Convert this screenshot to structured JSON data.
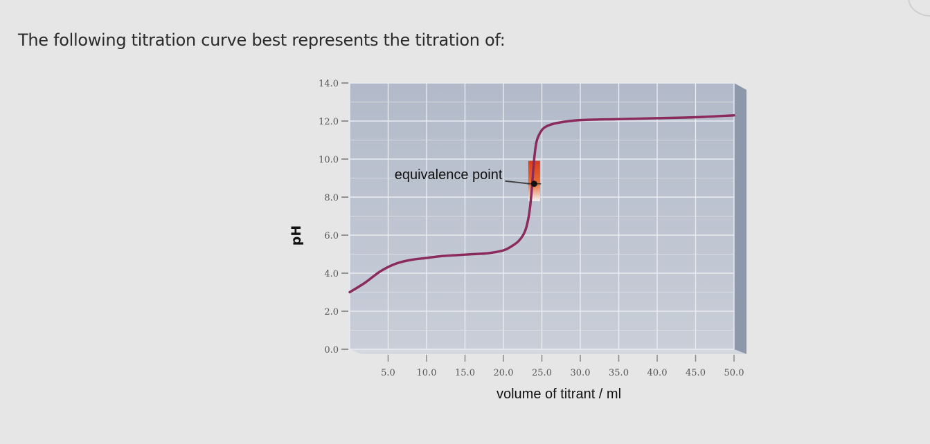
{
  "question": "The following titration curve best represents the titration of:",
  "chart_data": {
    "type": "line",
    "title": "",
    "xlabel": "volume of titrant / ml",
    "ylabel": "pH",
    "xlim": [
      0,
      50
    ],
    "ylim": [
      0,
      14
    ],
    "x_ticks": [
      5,
      10,
      15,
      20,
      25,
      30,
      35,
      40,
      45,
      50
    ],
    "x_tick_labels": [
      "5.0",
      "10.0",
      "15.0",
      "20.0",
      "25.0",
      "30.0",
      "35.0",
      "40.0",
      "45.0",
      "50.0"
    ],
    "y_ticks": [
      0,
      2,
      4,
      6,
      8,
      10,
      12,
      14
    ],
    "y_tick_labels": [
      "0.0",
      "2.0",
      "4.0",
      "6.0",
      "8.0",
      "10.0",
      "12.0",
      "14.0"
    ],
    "grid": true,
    "series": [
      {
        "color": "#8b2a5c",
        "x": [
          0,
          2,
          4,
          6,
          8,
          10,
          12,
          14,
          16,
          18,
          20,
          21,
          22,
          22.8,
          23.3,
          23.6,
          23.8,
          24.0,
          24.3,
          24.8,
          25.5,
          27,
          30,
          35,
          40,
          45,
          50
        ],
        "y": [
          3.0,
          3.5,
          4.1,
          4.5,
          4.7,
          4.8,
          4.9,
          4.95,
          5.0,
          5.05,
          5.2,
          5.4,
          5.7,
          6.2,
          7.0,
          8.0,
          9.0,
          10.0,
          10.9,
          11.4,
          11.7,
          11.9,
          12.05,
          12.1,
          12.15,
          12.2,
          12.3
        ]
      }
    ],
    "annotations": [
      {
        "text": "equivalence point",
        "x": 24.0,
        "y": 8.7
      }
    ]
  }
}
